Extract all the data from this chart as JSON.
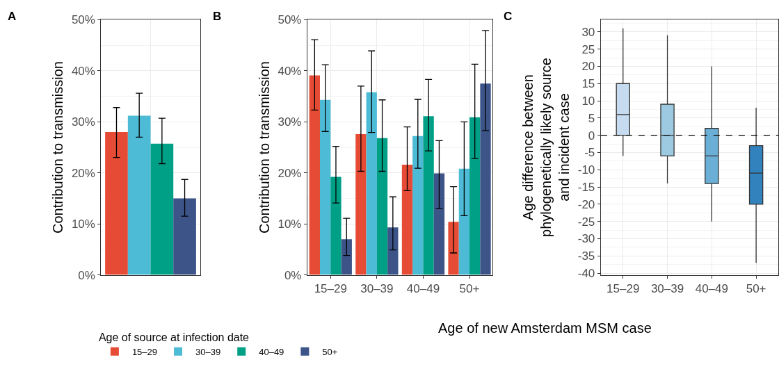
{
  "chart_data": [
    {
      "type": "bar",
      "title": "A",
      "ylabel": "Contribution to transmission",
      "categories": [
        null
      ],
      "series": [
        {
          "color": "#e64b35",
          "values": [
            28
          ],
          "errors": [
            [
              23,
              32.8
            ]
          ]
        },
        {
          "color": "#4dbbd5",
          "values": [
            31.2
          ],
          "errors": [
            [
              27,
              35.6
            ]
          ]
        },
        {
          "color": "#00a087",
          "values": [
            25.7
          ],
          "errors": [
            [
              21.8,
              30.7
            ]
          ]
        },
        {
          "color": "#3c5488",
          "values": [
            15
          ],
          "errors": [
            [
              11.5,
              18.7
            ]
          ]
        }
      ],
      "ylim": [
        0,
        50
      ],
      "yticks": [
        {
          "value": 0,
          "label": "0%"
        },
        {
          "value": 10,
          "label": "10%"
        },
        {
          "value": 20,
          "label": "20%"
        },
        {
          "value": 30,
          "label": "30%"
        },
        {
          "value": 40,
          "label": "40%"
        },
        {
          "value": 50,
          "label": "50%"
        }
      ],
      "grid": true,
      "tick_labels": "y"
    },
    {
      "type": "bar",
      "title": "B",
      "ylabel": "Contribution to transmission",
      "categories": [
        "15–29",
        "30–39",
        "40–49",
        "50+"
      ],
      "series": [
        {
          "name": "15–29",
          "color": "#e64b35",
          "values": [
            39.1,
            27.6,
            21.6,
            10.4
          ],
          "errors": [
            [
              32.3,
              46.1
            ],
            [
              20.3,
              37
            ],
            [
              16.5,
              29
            ],
            [
              4.3,
              17.3
            ]
          ]
        },
        {
          "name": "30–39",
          "color": "#4dbbd5",
          "values": [
            34.3,
            35.8,
            27.2,
            20.8
          ],
          "errors": [
            [
              28.1,
              41.2
            ],
            [
              27.9,
              43.9
            ],
            [
              20.9,
              34.4
            ],
            [
              11.6,
              30
            ]
          ]
        },
        {
          "name": "40–49",
          "color": "#00a087",
          "values": [
            19.2,
            26.8,
            31.1,
            30.9
          ],
          "errors": [
            [
              14.1,
              25.2
            ],
            [
              20.3,
              34.3
            ],
            [
              24.3,
              38.3
            ],
            [
              22.8,
              41.3
            ]
          ]
        },
        {
          "name": "50+",
          "color": "#3c5488",
          "values": [
            7,
            9.3,
            19.9,
            37.5
          ],
          "errors": [
            [
              3.8,
              11.1
            ],
            [
              4.9,
              15.3
            ],
            [
              13,
              26.3
            ],
            [
              28.3,
              47.9
            ]
          ]
        }
      ],
      "ylim": [
        0,
        50
      ],
      "yticks": [
        {
          "value": 0,
          "label": "0%"
        },
        {
          "value": 10,
          "label": "10%"
        },
        {
          "value": 20,
          "label": "20%"
        },
        {
          "value": 30,
          "label": "30%"
        },
        {
          "value": 40,
          "label": "40%"
        },
        {
          "value": 50,
          "label": "50%"
        }
      ],
      "grid": true,
      "legend": "bottom",
      "legend_title": "Age of source at infection date"
    },
    {
      "type": "box",
      "title": "C",
      "ylabel": "Age difference between\nphylogenetically likely source\nand incident case",
      "xlabel": "Age of new Amsterdam MSM case",
      "categories": [
        "15–29",
        "30–39",
        "40–49",
        "50+"
      ],
      "colors": [
        "#c6dbef",
        "#9ecae1",
        "#6baed6",
        "#3182bd"
      ],
      "boxes": [
        {
          "low": -6,
          "q1": 0,
          "median": 6,
          "q3": 15,
          "high": 31
        },
        {
          "low": -14,
          "q1": -6,
          "median": 0,
          "q3": 9,
          "high": 29
        },
        {
          "low": -25,
          "q1": -14,
          "median": -6,
          "q3": 2,
          "high": 20
        },
        {
          "low": -37,
          "q1": -20,
          "median": -11,
          "q3": -3,
          "high": 8
        }
      ],
      "ylim": [
        -40.5,
        33.5
      ],
      "yticks": [
        -40,
        -35,
        -30,
        -25,
        -20,
        -15,
        -10,
        -5,
        0,
        5,
        10,
        15,
        20,
        25,
        30
      ],
      "ref_lines": [
        {
          "axis": "y",
          "value": 0,
          "line_style": "dashed",
          "color": "#000000"
        }
      ],
      "grid": true
    }
  ]
}
